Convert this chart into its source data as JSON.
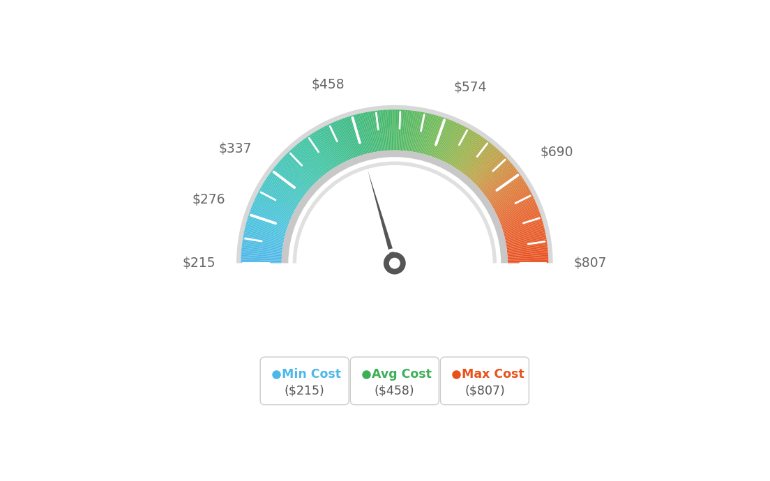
{
  "min_val": 215,
  "max_val": 807,
  "avg_val": 458,
  "labels": [
    "$215",
    "$276",
    "$337",
    "$458",
    "$574",
    "$690",
    "$807"
  ],
  "label_values": [
    215,
    276,
    337,
    458,
    574,
    690,
    807
  ],
  "tick_values": [
    215,
    246,
    276,
    307,
    337,
    368,
    398,
    428,
    458,
    488,
    518,
    548,
    574,
    605,
    635,
    665,
    690,
    720,
    750,
    780,
    807
  ],
  "legend": [
    {
      "label": "Min Cost",
      "color": "#4db8e8",
      "value": "($215)"
    },
    {
      "label": "Avg Cost",
      "color": "#3daf57",
      "value": "($458)"
    },
    {
      "label": "Max Cost",
      "color": "#e8511a",
      "value": "($807)"
    }
  ],
  "color_stops": [
    [
      0.0,
      [
        78,
        182,
        232
      ]
    ],
    [
      0.1,
      [
        72,
        194,
        220
      ]
    ],
    [
      0.2,
      [
        66,
        196,
        190
      ]
    ],
    [
      0.3,
      [
        62,
        195,
        160
      ]
    ],
    [
      0.4,
      [
        58,
        185,
        130
      ]
    ],
    [
      0.5,
      [
        72,
        183,
        100
      ]
    ],
    [
      0.6,
      [
        115,
        185,
        85
      ]
    ],
    [
      0.68,
      [
        155,
        178,
        75
      ]
    ],
    [
      0.74,
      [
        190,
        160,
        70
      ]
    ],
    [
      0.8,
      [
        218,
        130,
        60
      ]
    ],
    [
      0.88,
      [
        230,
        100,
        45
      ]
    ],
    [
      1.0,
      [
        232,
        78,
        30
      ]
    ]
  ],
  "bg_color": "#ffffff"
}
